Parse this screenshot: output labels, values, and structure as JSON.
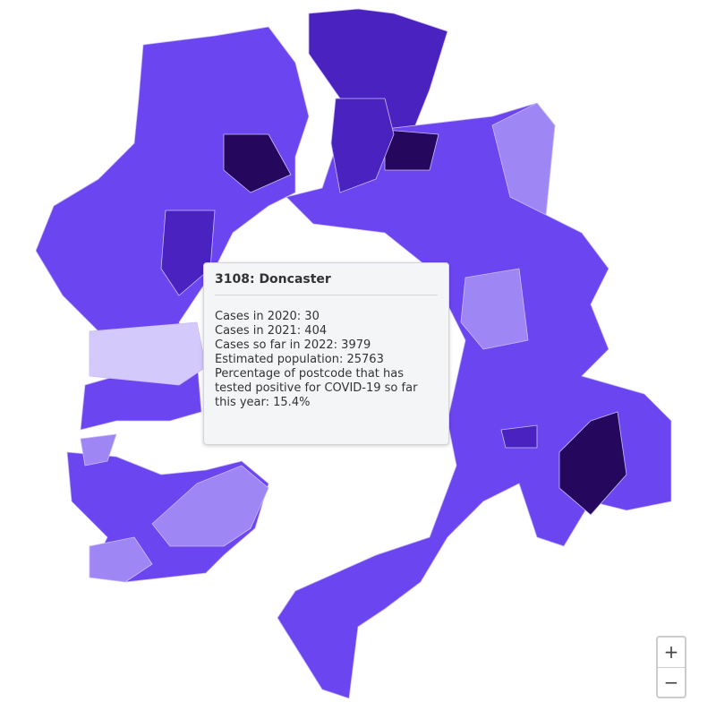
{
  "tooltip": {
    "title": "3108: Doncaster",
    "lines": [
      "Cases in 2020: 30",
      "Cases in 2021: 404",
      "Cases so far in 2022: 3979",
      "Estimated population: 25763",
      "Percentage of postcode that has tested positive for COVID-19 so far this year: 15.4%"
    ]
  },
  "zoom_controls": {
    "zoom_in": "+",
    "zoom_out": "−"
  }
}
